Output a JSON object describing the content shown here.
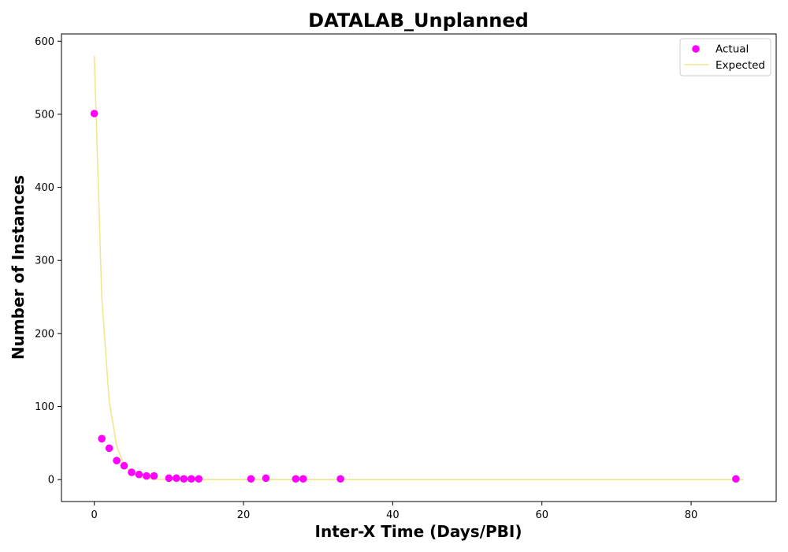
{
  "chart_data": {
    "type": "scatter",
    "title": "DATALAB_Unplanned",
    "xlabel": "Inter-X Time (Days/PBI)",
    "ylabel": "Number of Instances",
    "xlim": [
      -4.4,
      91.4
    ],
    "ylim": [
      -30,
      610
    ],
    "xticks": [
      0,
      20,
      40,
      60,
      80
    ],
    "yticks": [
      0,
      100,
      200,
      300,
      400,
      500,
      600
    ],
    "grid": false,
    "legend_position": "top-right",
    "series": [
      {
        "name": "Actual",
        "type": "scatter",
        "color": "#ff00ff",
        "x": [
          0,
          1,
          2,
          3,
          4,
          5,
          6,
          7,
          8,
          10,
          11,
          12,
          13,
          14,
          21,
          23,
          27,
          28,
          33,
          86
        ],
        "y": [
          501,
          56,
          43,
          26,
          19,
          10,
          7,
          5,
          5,
          2,
          2,
          1,
          1,
          1,
          1,
          2,
          1,
          1,
          1,
          1
        ]
      },
      {
        "name": "Expected",
        "type": "line",
        "color": "#f0e68c",
        "x": [
          0,
          1,
          2,
          3,
          4,
          5,
          6,
          7,
          8,
          9,
          10,
          12,
          14,
          16,
          20,
          30,
          40,
          60,
          80,
          87
        ],
        "y": [
          580,
          250,
          107,
          46,
          20,
          8.5,
          3.7,
          1.6,
          0.7,
          0.3,
          0.1,
          0,
          0,
          0,
          0,
          0,
          0,
          0,
          0,
          0
        ]
      }
    ]
  }
}
